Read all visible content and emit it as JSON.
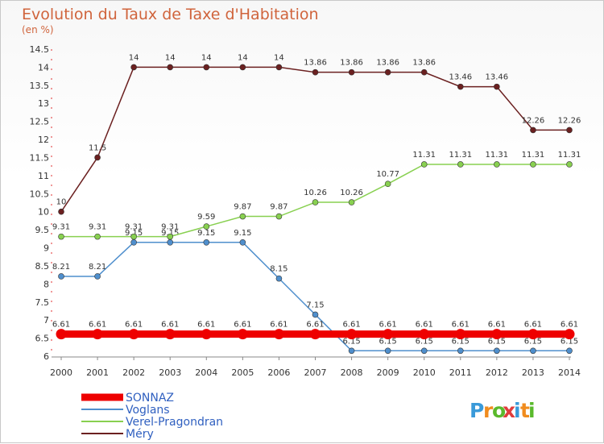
{
  "chart_data": {
    "type": "line",
    "title": "Evolution du Taux de Taxe d'Habitation",
    "subtitle": "(en %)",
    "x": [
      "2000",
      "2001",
      "2002",
      "2003",
      "2004",
      "2005",
      "2006",
      "2007",
      "2008",
      "2009",
      "2010",
      "2011",
      "2012",
      "2013",
      "2014"
    ],
    "ylim": [
      6,
      14.5
    ],
    "yticks": [
      "6",
      "6.5",
      "7",
      "7.5",
      "8",
      "8.5",
      "9",
      "9.5",
      "10",
      "10.5",
      "11",
      "11.5",
      "12",
      "12.5",
      "13",
      "13.5",
      "14",
      "14.5"
    ],
    "grid": false,
    "legend_position": "bottom-left",
    "series": [
      {
        "name": "SONNAZ",
        "color": "#ee0000",
        "values": [
          6.61,
          6.61,
          6.61,
          6.61,
          6.61,
          6.61,
          6.61,
          6.61,
          6.61,
          6.61,
          6.61,
          6.61,
          6.61,
          6.61,
          6.61
        ],
        "labels": [
          "6.61",
          "6.61",
          "6.61",
          "6.61",
          "6.61",
          "6.61",
          "6.61",
          "6.61",
          "6.61",
          "6.61",
          "6.61",
          "6.61",
          "6.61",
          "6.61",
          "6.61"
        ]
      },
      {
        "name": "Voglans",
        "color": "#4f8fcd",
        "values": [
          8.21,
          8.21,
          9.15,
          9.15,
          9.15,
          9.15,
          8.15,
          7.15,
          6.15,
          6.15,
          6.15,
          6.15,
          6.15,
          6.15,
          6.15
        ],
        "labels": [
          "8.21",
          "8.21",
          "9.15",
          "9.15",
          "9.15",
          "9.15",
          "8.15",
          "7.15",
          "6.15",
          "6.15",
          "6.15",
          "6.15",
          "6.15",
          "6.15",
          "6.15"
        ]
      },
      {
        "name": "Verel-Pragondran",
        "color": "#88d050",
        "values": [
          9.31,
          9.31,
          9.31,
          9.31,
          9.59,
          9.87,
          9.87,
          10.26,
          10.26,
          10.77,
          11.31,
          11.31,
          11.31,
          11.31,
          11.31
        ],
        "labels": [
          "9.31",
          "9.31",
          "9.31",
          "9.31",
          "9.59",
          "9.87",
          "9.87",
          "10.26",
          "10.26",
          "10.77",
          "11.31",
          "11.31",
          "11.31",
          "11.31",
          "11.31"
        ]
      },
      {
        "name": "Méry",
        "color": "#6b2020",
        "values": [
          10,
          11.5,
          14,
          14,
          14,
          14,
          14,
          13.86,
          13.86,
          13.86,
          13.86,
          13.46,
          13.46,
          12.26,
          12.26
        ],
        "labels": [
          "10",
          "11.5",
          "14",
          "14",
          "14",
          "14",
          "14",
          "13.86",
          "13.86",
          "13.86",
          "13.86",
          "13.46",
          "13.46",
          "12.26",
          "12.26"
        ]
      }
    ]
  },
  "logo": {
    "text": "Proxiti",
    "colors": [
      "#3a9ad9",
      "#f08c1e",
      "#5ab92c",
      "#e03c3c"
    ]
  }
}
